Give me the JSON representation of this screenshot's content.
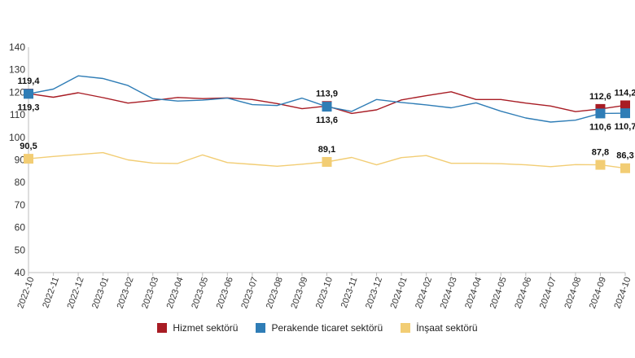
{
  "chart_data": {
    "type": "line",
    "x": [
      "2022-10",
      "2022-11",
      "2022-12",
      "2023-01",
      "2023-02",
      "2023-03",
      "2023-04",
      "2023-05",
      "2023-06",
      "2023-07",
      "2023-08",
      "2023-09",
      "2023-10",
      "2023-11",
      "2023-12",
      "2024-01",
      "2024-02",
      "2024-03",
      "2024-04",
      "2024-05",
      "2024-06",
      "2024-07",
      "2024-08",
      "2024-09",
      "2024-10"
    ],
    "ylim": [
      40,
      140
    ],
    "yticks": [
      40,
      50,
      60,
      70,
      80,
      90,
      100,
      110,
      120,
      130,
      140
    ],
    "grid": false,
    "legend_position": "bottom",
    "series": [
      {
        "name": "Hizmet sektörü",
        "color": "#a81c24",
        "values": [
          119.4,
          117.8,
          119.8,
          117.6,
          115.2,
          116.3,
          117.7,
          117.2,
          117.5,
          116.8,
          115.0,
          112.7,
          113.9,
          110.6,
          112.2,
          116.6,
          118.5,
          120.2,
          116.8,
          116.8,
          115.2,
          113.9,
          111.4,
          112.6,
          114.2
        ],
        "labels": [
          {
            "index": 0,
            "text": "119,4",
            "pos": "above"
          },
          {
            "index": 12,
            "text": "113,9",
            "pos": "above"
          },
          {
            "index": 23,
            "text": "112,6",
            "pos": "above"
          },
          {
            "index": 24,
            "text": "114,2",
            "pos": "above"
          }
        ]
      },
      {
        "name": "Perakende ticaret sektörü",
        "color": "#2f7db6",
        "values": [
          119.3,
          121.4,
          127.3,
          126.1,
          123.0,
          117.2,
          116.1,
          116.5,
          117.4,
          114.5,
          114.1,
          117.4,
          113.6,
          111.5,
          116.8,
          115.5,
          114.4,
          113.1,
          115.3,
          111.6,
          108.6,
          106.8,
          107.6,
          110.6,
          110.7
        ],
        "labels": [
          {
            "index": 0,
            "text": "119,3",
            "pos": "below"
          },
          {
            "index": 12,
            "text": "113,6",
            "pos": "below"
          },
          {
            "index": 23,
            "text": "110,6",
            "pos": "below"
          },
          {
            "index": 24,
            "text": "110,7",
            "pos": "below"
          }
        ]
      },
      {
        "name": "İnşaat sektörü",
        "color": "#f2cd74",
        "values": [
          90.5,
          91.5,
          92.4,
          93.2,
          90.0,
          88.6,
          88.4,
          92.2,
          88.8,
          88.0,
          87.2,
          88.1,
          89.1,
          91.1,
          87.8,
          91.0,
          91.9,
          88.5,
          88.5,
          88.3,
          87.8,
          87.0,
          87.9,
          87.8,
          86.3
        ],
        "labels": [
          {
            "index": 0,
            "text": "90,5",
            "pos": "above"
          },
          {
            "index": 12,
            "text": "89,1",
            "pos": "above"
          },
          {
            "index": 23,
            "text": "87,8",
            "pos": "above"
          },
          {
            "index": 24,
            "text": "86,3",
            "pos": "above"
          }
        ]
      }
    ]
  }
}
